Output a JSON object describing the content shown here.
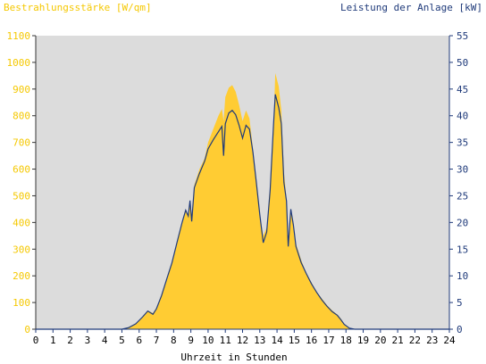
{
  "chart_data": {
    "type": "area",
    "title_left": "Bestrahlungsstärke [W/qm]",
    "title_right": "Leistung der Anlage [kW]",
    "xlabel": "Uhrzeit in Stunden",
    "xlim": [
      0,
      24
    ],
    "x_ticks": [
      "0",
      "1",
      "2",
      "3",
      "4",
      "5",
      "6",
      "7",
      "8",
      "9",
      "10",
      "11",
      "12",
      "13",
      "14",
      "15",
      "16",
      "17",
      "18",
      "19",
      "20",
      "21",
      "22",
      "23",
      "24"
    ],
    "y_left": {
      "lim": [
        0,
        1100
      ],
      "ticks": [
        "0",
        "100",
        "200",
        "300",
        "400",
        "500",
        "600",
        "700",
        "800",
        "900",
        "1000",
        "1100"
      ]
    },
    "y_right": {
      "lim": [
        0,
        55
      ],
      "ticks": [
        "0",
        "5",
        "10",
        "15",
        "20",
        "25",
        "30",
        "35",
        "40",
        "45",
        "50",
        "55"
      ]
    },
    "grid": false,
    "colors": {
      "irradiance": "#FFCC33",
      "power": "#1F3A7A",
      "plot_bg": "#DCDCDC",
      "left_axis_text": "#F5C800",
      "right_axis_text": "#1F3A7A"
    },
    "series": [
      {
        "name": "Bestrahlungsstärke [W/qm]",
        "axis": "left",
        "points": [
          [
            0,
            0
          ],
          [
            5,
            0
          ],
          [
            5.4,
            8
          ],
          [
            5.8,
            20
          ],
          [
            6.2,
            45
          ],
          [
            6.5,
            70
          ],
          [
            6.8,
            60
          ],
          [
            7.0,
            80
          ],
          [
            7.3,
            130
          ],
          [
            7.6,
            190
          ],
          [
            7.9,
            250
          ],
          [
            8.2,
            330
          ],
          [
            8.5,
            400
          ],
          [
            8.7,
            440
          ],
          [
            8.85,
            430
          ],
          [
            8.95,
            470
          ],
          [
            9.05,
            420
          ],
          [
            9.2,
            540
          ],
          [
            9.5,
            600
          ],
          [
            9.8,
            640
          ],
          [
            10.0,
            700
          ],
          [
            10.3,
            750
          ],
          [
            10.6,
            800
          ],
          [
            10.8,
            825
          ],
          [
            10.9,
            780
          ],
          [
            11.0,
            870
          ],
          [
            11.2,
            905
          ],
          [
            11.4,
            915
          ],
          [
            11.6,
            890
          ],
          [
            11.8,
            840
          ],
          [
            12.0,
            780
          ],
          [
            12.2,
            820
          ],
          [
            12.4,
            790
          ],
          [
            12.6,
            680
          ],
          [
            12.8,
            560
          ],
          [
            13.0,
            430
          ],
          [
            13.2,
            350
          ],
          [
            13.4,
            380
          ],
          [
            13.6,
            520
          ],
          [
            13.8,
            770
          ],
          [
            13.9,
            960
          ],
          [
            14.1,
            910
          ],
          [
            14.25,
            820
          ],
          [
            14.4,
            590
          ],
          [
            14.55,
            490
          ],
          [
            14.65,
            330
          ],
          [
            14.8,
            450
          ],
          [
            14.95,
            400
          ],
          [
            15.1,
            320
          ],
          [
            15.4,
            260
          ],
          [
            15.7,
            210
          ],
          [
            16.0,
            175
          ],
          [
            16.3,
            140
          ],
          [
            16.6,
            115
          ],
          [
            16.9,
            90
          ],
          [
            17.2,
            70
          ],
          [
            17.5,
            55
          ],
          [
            17.7,
            40
          ],
          [
            17.9,
            20
          ],
          [
            18.2,
            5
          ],
          [
            18.5,
            0
          ],
          [
            24,
            0
          ]
        ]
      },
      {
        "name": "Leistung der Anlage [kW]",
        "axis": "right",
        "points": [
          [
            0,
            0
          ],
          [
            5,
            0
          ],
          [
            5.4,
            0.3
          ],
          [
            5.8,
            1.0
          ],
          [
            6.2,
            2.3
          ],
          [
            6.5,
            3.4
          ],
          [
            6.8,
            2.8
          ],
          [
            7.0,
            3.8
          ],
          [
            7.3,
            6.3
          ],
          [
            7.6,
            9.4
          ],
          [
            7.9,
            12.4
          ],
          [
            8.2,
            16.3
          ],
          [
            8.5,
            20.1
          ],
          [
            8.7,
            22.3
          ],
          [
            8.85,
            21.2
          ],
          [
            8.95,
            24.1
          ],
          [
            9.05,
            20.2
          ],
          [
            9.2,
            26.5
          ],
          [
            9.5,
            29.2
          ],
          [
            9.8,
            31.5
          ],
          [
            10.0,
            33.8
          ],
          [
            10.3,
            35.5
          ],
          [
            10.6,
            37.0
          ],
          [
            10.8,
            38.0
          ],
          [
            10.9,
            32.5
          ],
          [
            11.0,
            38.5
          ],
          [
            11.2,
            40.5
          ],
          [
            11.4,
            41.0
          ],
          [
            11.6,
            40.2
          ],
          [
            11.8,
            38.2
          ],
          [
            12.0,
            35.8
          ],
          [
            12.2,
            38.2
          ],
          [
            12.4,
            37.5
          ],
          [
            12.6,
            33.2
          ],
          [
            12.8,
            27.5
          ],
          [
            13.0,
            21.5
          ],
          [
            13.2,
            16.2
          ],
          [
            13.4,
            18.2
          ],
          [
            13.6,
            26.0
          ],
          [
            13.8,
            38.5
          ],
          [
            13.9,
            44.0
          ],
          [
            14.1,
            41.5
          ],
          [
            14.25,
            38.5
          ],
          [
            14.4,
            27.5
          ],
          [
            14.55,
            24.0
          ],
          [
            14.65,
            15.5
          ],
          [
            14.8,
            22.5
          ],
          [
            14.95,
            19.5
          ],
          [
            15.1,
            15.5
          ],
          [
            15.4,
            12.5
          ],
          [
            15.7,
            10.4
          ],
          [
            16.0,
            8.5
          ],
          [
            16.3,
            6.9
          ],
          [
            16.6,
            5.5
          ],
          [
            16.9,
            4.3
          ],
          [
            17.2,
            3.3
          ],
          [
            17.5,
            2.6
          ],
          [
            17.7,
            1.8
          ],
          [
            17.9,
            0.9
          ],
          [
            18.2,
            0.2
          ],
          [
            18.5,
            0
          ],
          [
            24,
            0
          ]
        ]
      }
    ]
  }
}
